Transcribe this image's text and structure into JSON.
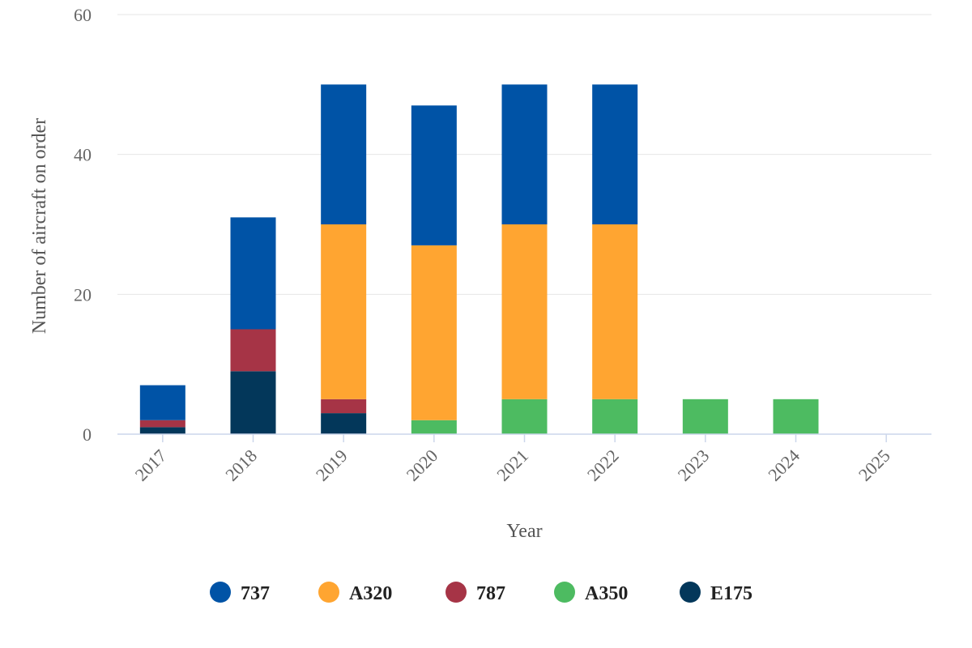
{
  "chart_data": {
    "type": "bar",
    "stacked": true,
    "categories": [
      "2017",
      "2018",
      "2019",
      "2020",
      "2021",
      "2022",
      "2023",
      "2024",
      "2025"
    ],
    "series": [
      {
        "name": "E175",
        "color": "#03375a",
        "values": [
          1,
          9,
          3,
          0,
          0,
          0,
          0,
          0,
          0
        ]
      },
      {
        "name": "A350",
        "color": "#4dbb61",
        "values": [
          0,
          0,
          0,
          2,
          5,
          5,
          5,
          5,
          0
        ]
      },
      {
        "name": "787",
        "color": "#a63446",
        "values": [
          1,
          6,
          2,
          0,
          0,
          0,
          0,
          0,
          0
        ]
      },
      {
        "name": "A320",
        "color": "#ffa531",
        "values": [
          0,
          0,
          25,
          25,
          25,
          25,
          0,
          0,
          0
        ]
      },
      {
        "name": "737",
        "color": "#0053a6",
        "values": [
          5,
          16,
          20,
          20,
          20,
          20,
          0,
          0,
          0
        ]
      }
    ],
    "legend_order": [
      "737",
      "A320",
      "787",
      "A350",
      "E175"
    ],
    "legend_position": "bottom",
    "xlabel": "Year",
    "ylabel": "Number of aircraft on order",
    "ylim": [
      0,
      60
    ],
    "yticks": [
      0,
      20,
      40,
      60
    ],
    "grid": true
  }
}
